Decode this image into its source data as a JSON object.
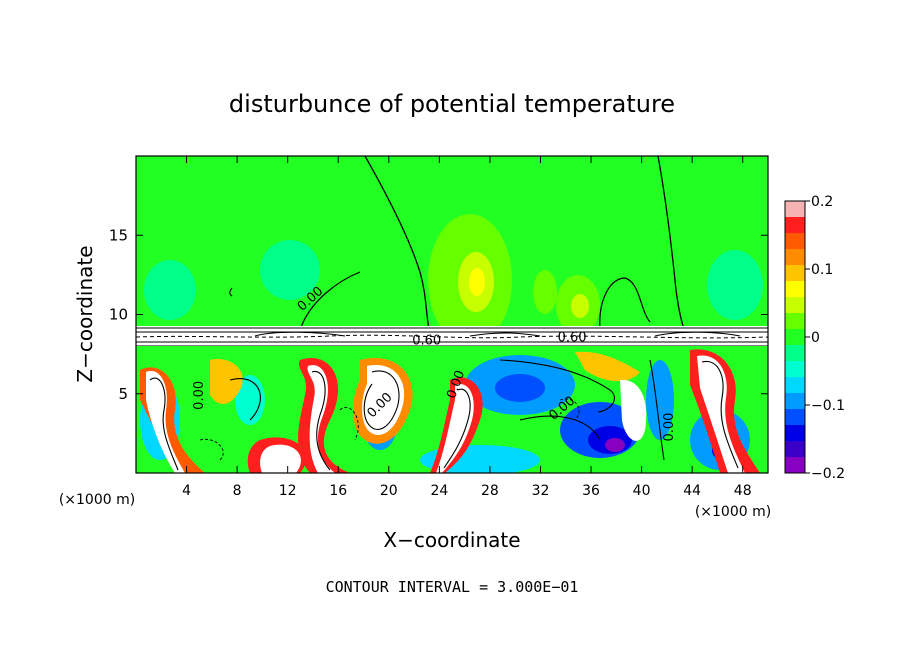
{
  "chart_data": {
    "type": "heatmap",
    "title": "disturbunce of potential temperature",
    "xlabel": "X−coordinate",
    "ylabel": "Z−coordinate",
    "x_unit_left": "(×1000 m)",
    "x_unit_right": "(×1000 m)",
    "footer": "CONTOUR INTERVAL = 3.000E−01",
    "x_ticks": [
      "4",
      "8",
      "12",
      "16",
      "20",
      "24",
      "28",
      "32",
      "36",
      "40",
      "44",
      "48"
    ],
    "x_tick_values": [
      4,
      8,
      12,
      16,
      20,
      24,
      28,
      32,
      36,
      40,
      44,
      48
    ],
    "y_ticks": [
      "5",
      "10",
      "15"
    ],
    "y_tick_values": [
      5,
      10,
      15
    ],
    "xlim": [
      0,
      50
    ],
    "ylim": [
      0,
      20
    ],
    "colorbar": {
      "ticks": [
        "0.2",
        "0.1",
        "0",
        "−0.1",
        "−0.2"
      ],
      "tick_values": [
        0.2,
        0.1,
        0,
        -0.1,
        -0.2
      ],
      "range": [
        -0.2,
        0.2
      ],
      "colors": [
        "#f7b3b3",
        "#ff1f1f",
        "#ff5a00",
        "#ff8c00",
        "#ffc400",
        "#ffff00",
        "#c8ff00",
        "#66ff00",
        "#22ff22",
        "#00ff88",
        "#00ffd0",
        "#00d8ff",
        "#009cff",
        "#0050ff",
        "#0000e6",
        "#3a00c8",
        "#8800c0"
      ]
    },
    "contour_labels": [
      {
        "text": "0.00",
        "x": 14.0,
        "z": 10.8,
        "rot": -42
      },
      {
        "text": "0.60",
        "x": 23.0,
        "z": 8.1,
        "rot": 0
      },
      {
        "text": "0.60",
        "x": 34.5,
        "z": 8.3,
        "rot": 0
      },
      {
        "text": "0.00",
        "x": 5.3,
        "z": 4.9,
        "rot": -90
      },
      {
        "text": "0.00",
        "x": 19.5,
        "z": 4.1,
        "rot": -45
      },
      {
        "text": "0.00",
        "x": 25.6,
        "z": 5.5,
        "rot": -70
      },
      {
        "text": "0.00",
        "x": 33.9,
        "z": 3.9,
        "rot": -40
      },
      {
        "text": "0.00",
        "x": 42.5,
        "z": 2.9,
        "rot": -90
      }
    ]
  }
}
